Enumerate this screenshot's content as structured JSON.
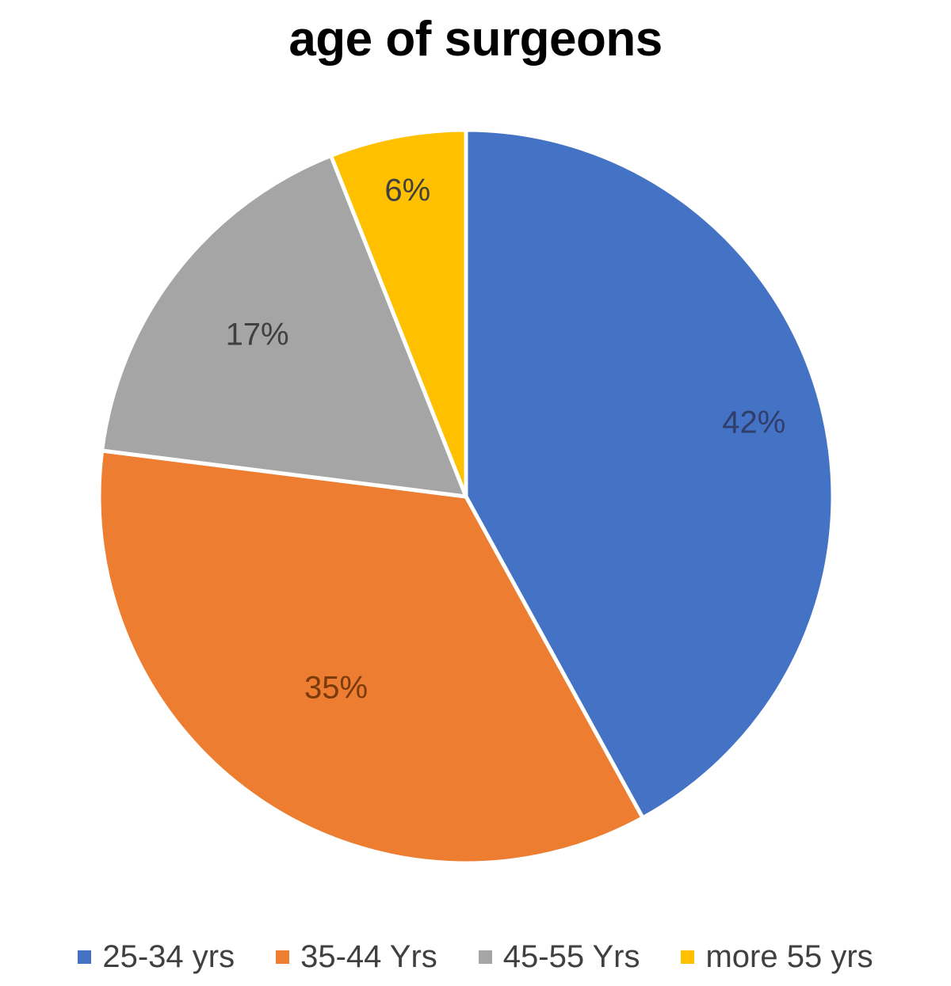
{
  "chart_data": {
    "type": "pie",
    "title": "age of surgeons",
    "categories": [
      "25-34 yrs",
      "35-44 Yrs",
      "45-55 Yrs",
      "more 55 yrs"
    ],
    "values": [
      42,
      35,
      17,
      6
    ],
    "data_labels": [
      "42%",
      "35%",
      "17%",
      "6%"
    ],
    "colors": [
      "#4472C4",
      "#ED7D31",
      "#A5A5A5",
      "#FFC000"
    ],
    "label_colors": [
      "#2F3E6B",
      "#7A3A0C",
      "#404040",
      "#404040"
    ],
    "start_angle": "12 o'clock",
    "direction": "clockwise",
    "legend_position": "bottom"
  }
}
